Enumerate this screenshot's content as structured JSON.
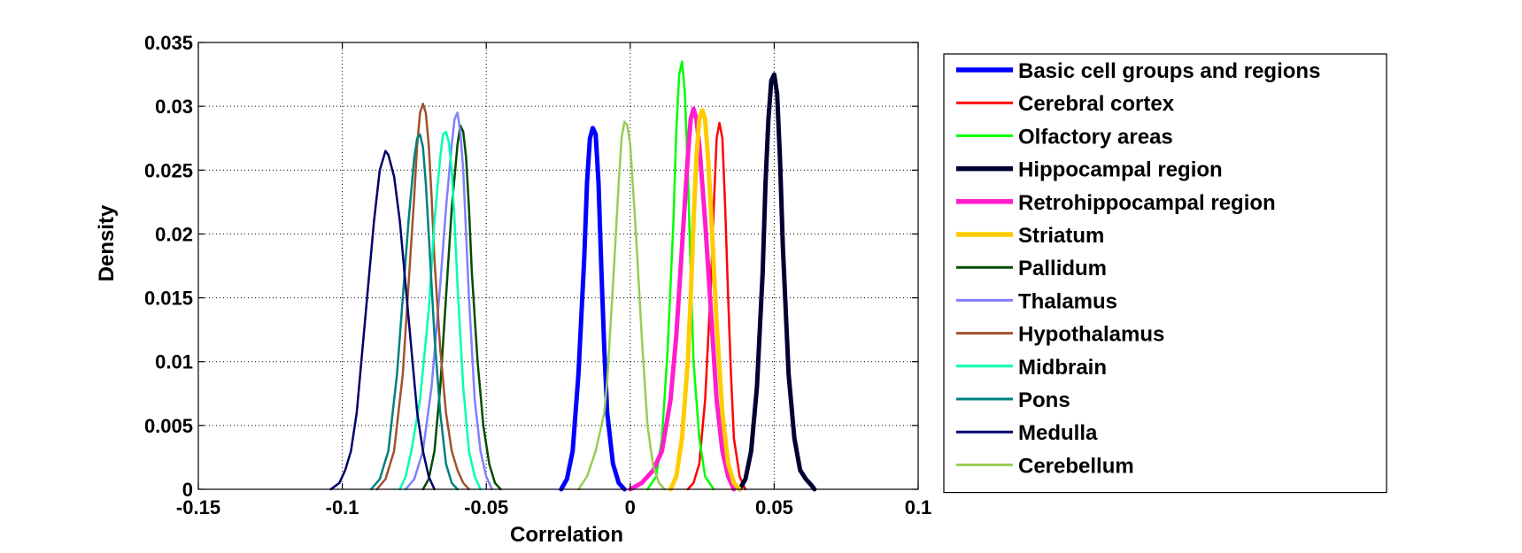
{
  "chart_data": {
    "type": "line",
    "title": "",
    "xlabel": "Correlation",
    "ylabel": "Density",
    "xlim": [
      -0.15,
      0.1
    ],
    "ylim": [
      0,
      0.035
    ],
    "xticks": [
      -0.15,
      -0.1,
      -0.05,
      0,
      0.05,
      0.1
    ],
    "xtick_labels": [
      "-0.15",
      "-0.1",
      "-0.05",
      "0",
      "0.05",
      "0.1"
    ],
    "yticks": [
      0,
      0.005,
      0.01,
      0.015,
      0.02,
      0.025,
      0.03,
      0.035
    ],
    "ytick_labels": [
      "0",
      "0.005",
      "0.01",
      "0.015",
      "0.02",
      "0.025",
      "0.03",
      "0.035"
    ],
    "grid": true,
    "legend_position": "right-outside",
    "series": [
      {
        "name": "Basic cell groups and regions",
        "color": "#0000ff",
        "thick": true,
        "x": [
          -0.024,
          -0.022,
          -0.02,
          -0.018,
          -0.016,
          -0.015,
          -0.014,
          -0.013,
          -0.012,
          -0.011,
          -0.01,
          -0.009,
          -0.008,
          -0.006,
          -0.004,
          -0.002
        ],
        "y": [
          0,
          0.0008,
          0.003,
          0.009,
          0.018,
          0.024,
          0.0275,
          0.0283,
          0.0278,
          0.024,
          0.017,
          0.011,
          0.006,
          0.002,
          0.0005,
          0
        ]
      },
      {
        "name": "Cerebral cortex",
        "color": "#ff0000",
        "thick": false,
        "x": [
          0.02,
          0.022,
          0.024,
          0.026,
          0.028,
          0.029,
          0.03,
          0.031,
          0.032,
          0.033,
          0.034,
          0.035,
          0.036,
          0.038,
          0.04
        ],
        "y": [
          0,
          0.0005,
          0.002,
          0.007,
          0.016,
          0.022,
          0.0275,
          0.0287,
          0.0275,
          0.022,
          0.015,
          0.009,
          0.004,
          0.001,
          0
        ]
      },
      {
        "name": "Olfactory areas",
        "color": "#00ff00",
        "thick": false,
        "x": [
          0.006,
          0.009,
          0.011,
          0.013,
          0.015,
          0.016,
          0.017,
          0.018,
          0.019,
          0.02,
          0.021,
          0.022,
          0.024,
          0.026,
          0.029
        ],
        "y": [
          0,
          0.001,
          0.004,
          0.011,
          0.021,
          0.028,
          0.0325,
          0.0335,
          0.031,
          0.025,
          0.017,
          0.01,
          0.004,
          0.001,
          0
        ]
      },
      {
        "name": "Hippocampal region",
        "color": "#000033",
        "thick": true,
        "x": [
          0.038,
          0.04,
          0.042,
          0.044,
          0.046,
          0.047,
          0.048,
          0.049,
          0.05,
          0.051,
          0.052,
          0.053,
          0.055,
          0.057,
          0.059,
          0.061,
          0.063,
          0.064
        ],
        "y": [
          0,
          0.0008,
          0.003,
          0.008,
          0.017,
          0.024,
          0.029,
          0.032,
          0.0325,
          0.031,
          0.026,
          0.019,
          0.009,
          0.004,
          0.0015,
          0.0008,
          0.0003,
          0
        ]
      },
      {
        "name": "Retrohippocampal region",
        "color": "#ff1dce",
        "thick": true,
        "x": [
          0,
          0.004,
          0.008,
          0.011,
          0.014,
          0.016,
          0.018,
          0.02,
          0.021,
          0.022,
          0.023,
          0.024,
          0.026,
          0.028,
          0.03,
          0.032,
          0.034,
          0.036
        ],
        "y": [
          0,
          0.0005,
          0.0015,
          0.003,
          0.007,
          0.012,
          0.019,
          0.026,
          0.029,
          0.0298,
          0.029,
          0.027,
          0.021,
          0.014,
          0.007,
          0.003,
          0.001,
          0
        ]
      },
      {
        "name": "Striatum",
        "color": "#ffcc00",
        "thick": true,
        "x": [
          0.014,
          0.016,
          0.018,
          0.02,
          0.021,
          0.022,
          0.023,
          0.024,
          0.025,
          0.026,
          0.027,
          0.028,
          0.03,
          0.032,
          0.034,
          0.036,
          0.038
        ],
        "y": [
          0,
          0.001,
          0.004,
          0.01,
          0.015,
          0.021,
          0.026,
          0.029,
          0.0297,
          0.029,
          0.026,
          0.022,
          0.013,
          0.006,
          0.002,
          0.0005,
          0
        ]
      },
      {
        "name": "Pallidum",
        "color": "#004d00",
        "thick": false,
        "x": [
          -0.072,
          -0.07,
          -0.068,
          -0.066,
          -0.064,
          -0.062,
          -0.06,
          -0.059,
          -0.058,
          -0.057,
          -0.056,
          -0.055,
          -0.053,
          -0.051,
          -0.049,
          -0.047,
          -0.045
        ],
        "y": [
          0,
          0.0008,
          0.003,
          0.008,
          0.015,
          0.022,
          0.027,
          0.0285,
          0.028,
          0.026,
          0.022,
          0.017,
          0.01,
          0.005,
          0.002,
          0.0005,
          0
        ]
      },
      {
        "name": "Thalamus",
        "color": "#8080ff",
        "thick": false,
        "x": [
          -0.078,
          -0.075,
          -0.072,
          -0.069,
          -0.066,
          -0.064,
          -0.062,
          -0.061,
          -0.06,
          -0.059,
          -0.058,
          -0.057,
          -0.056,
          -0.054,
          -0.052,
          -0.05,
          -0.048
        ],
        "y": [
          0,
          0.0008,
          0.003,
          0.008,
          0.016,
          0.022,
          0.027,
          0.029,
          0.0295,
          0.028,
          0.025,
          0.02,
          0.015,
          0.007,
          0.003,
          0.001,
          0
        ]
      },
      {
        "name": "Hypothalamus",
        "color": "#a0522d",
        "thick": false,
        "x": [
          -0.088,
          -0.085,
          -0.082,
          -0.079,
          -0.077,
          -0.075,
          -0.074,
          -0.073,
          -0.072,
          -0.071,
          -0.07,
          -0.069,
          -0.068,
          -0.066,
          -0.064,
          -0.062,
          -0.06,
          -0.058,
          -0.056
        ],
        "y": [
          0,
          0.0008,
          0.003,
          0.009,
          0.016,
          0.023,
          0.027,
          0.0295,
          0.0302,
          0.0295,
          0.027,
          0.023,
          0.018,
          0.011,
          0.006,
          0.003,
          0.0015,
          0.0005,
          0
        ]
      },
      {
        "name": "Midbrain",
        "color": "#00ffb0",
        "thick": false,
        "x": [
          -0.08,
          -0.078,
          -0.076,
          -0.073,
          -0.07,
          -0.068,
          -0.066,
          -0.065,
          -0.064,
          -0.063,
          -0.062,
          -0.061,
          -0.06,
          -0.058,
          -0.056,
          -0.054,
          -0.052
        ],
        "y": [
          0,
          0.001,
          0.003,
          0.007,
          0.014,
          0.021,
          0.026,
          0.0278,
          0.028,
          0.0272,
          0.025,
          0.021,
          0.016,
          0.008,
          0.003,
          0.001,
          0
        ]
      },
      {
        "name": "Pons",
        "color": "#008080",
        "thick": false,
        "x": [
          -0.09,
          -0.087,
          -0.084,
          -0.081,
          -0.079,
          -0.077,
          -0.075,
          -0.074,
          -0.073,
          -0.072,
          -0.071,
          -0.07,
          -0.068,
          -0.066,
          -0.064,
          -0.062,
          -0.06
        ],
        "y": [
          0,
          0.0008,
          0.003,
          0.009,
          0.015,
          0.021,
          0.026,
          0.0275,
          0.0278,
          0.0268,
          0.024,
          0.02,
          0.012,
          0.006,
          0.002,
          0.0005,
          0
        ]
      },
      {
        "name": "Medulla",
        "color": "#00006b",
        "thick": false,
        "x": [
          -0.104,
          -0.101,
          -0.099,
          -0.097,
          -0.095,
          -0.093,
          -0.091,
          -0.089,
          -0.087,
          -0.085,
          -0.084,
          -0.082,
          -0.08,
          -0.078,
          -0.076,
          -0.074,
          -0.072,
          -0.07,
          -0.068
        ],
        "y": [
          0,
          0.0005,
          0.0015,
          0.003,
          0.006,
          0.011,
          0.016,
          0.021,
          0.025,
          0.0265,
          0.0262,
          0.0245,
          0.021,
          0.016,
          0.011,
          0.006,
          0.003,
          0.001,
          0
        ]
      },
      {
        "name": "Cerebellum",
        "color": "#99cc55",
        "thick": false,
        "x": [
          -0.018,
          -0.015,
          -0.012,
          -0.01,
          -0.009,
          -0.008,
          -0.006,
          -0.004,
          -0.003,
          -0.002,
          -0.001,
          0,
          0.002,
          0.004,
          0.006,
          0.008,
          0.01,
          0.012
        ],
        "y": [
          0,
          0.001,
          0.003,
          0.005,
          0.006,
          0.0085,
          0.016,
          0.024,
          0.0275,
          0.0288,
          0.0285,
          0.027,
          0.02,
          0.012,
          0.005,
          0.0018,
          0.0005,
          0
        ]
      }
    ]
  }
}
